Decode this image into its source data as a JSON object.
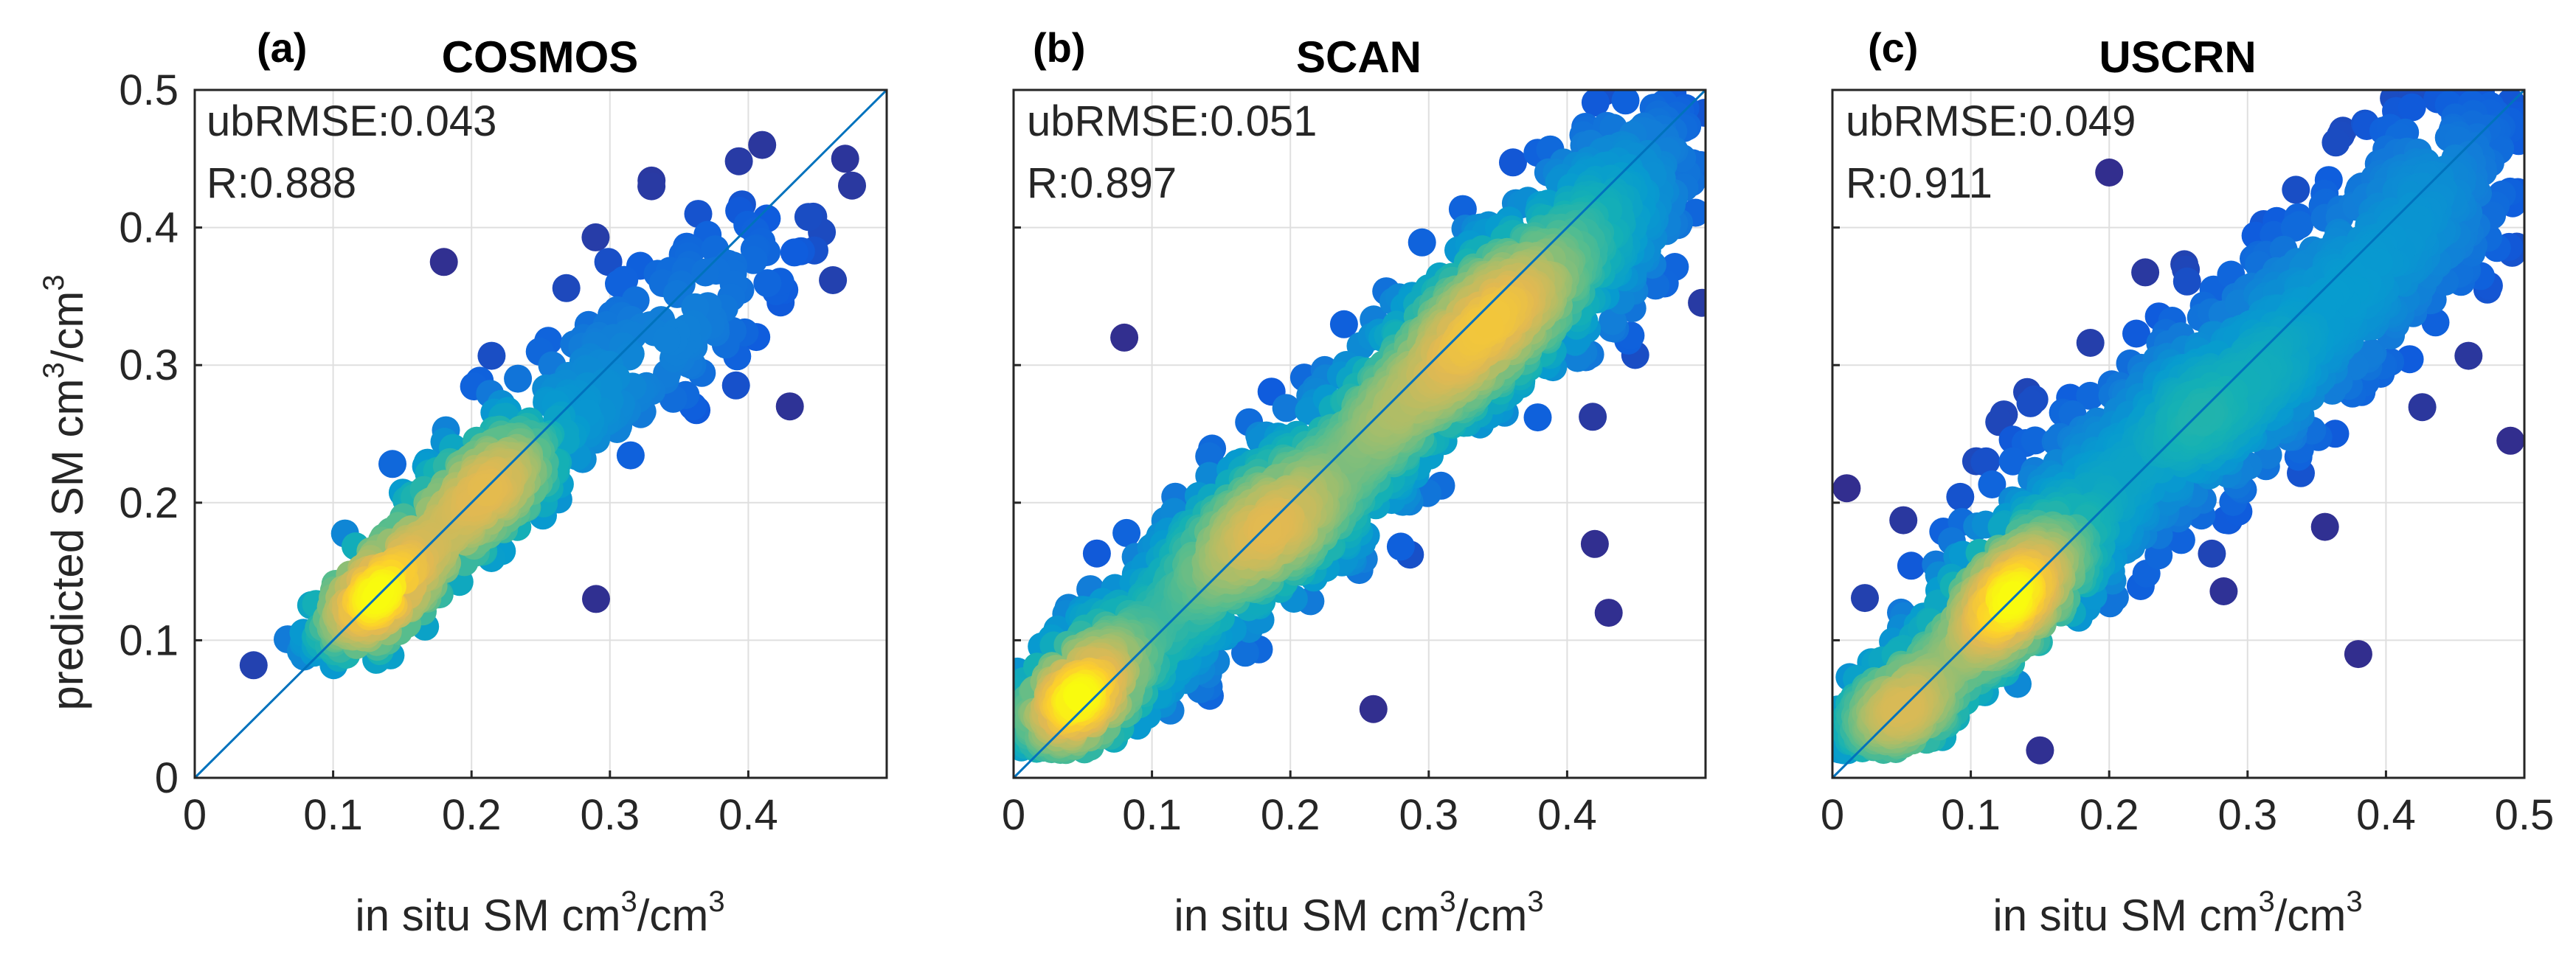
{
  "figure": {
    "ylabel_main": "predicted SM cm",
    "ylabel_sup1": "3",
    "ylabel_mid": "/cm",
    "ylabel_sup2": "3"
  },
  "chart_data": [
    {
      "type": "scatter",
      "panel_letter": "(a)",
      "title": "COSMOS",
      "xlabel_main": "in situ SM cm",
      "xlabel_sup": "3",
      "xlabel_tail": "/cm",
      "xlabel_sup2": "3",
      "xlim": [
        0,
        0.5
      ],
      "ylim": [
        0,
        0.5
      ],
      "xticks": [
        "0",
        "0.1",
        "0.2",
        "0.3",
        "0.4"
      ],
      "yticks": [
        "0",
        "0.1",
        "0.2",
        "0.3",
        "0.4",
        "0.5"
      ],
      "show_yticks": true,
      "stats": [
        "ubRMSE:0.043",
        "R:0.888"
      ],
      "reference_line": "1:1",
      "clusters": [
        {
          "cx": 0.13,
          "cy": 0.13,
          "sx": 0.025,
          "sy": 0.022,
          "rho": 0.7,
          "n": 260
        },
        {
          "cx": 0.21,
          "cy": 0.21,
          "sx": 0.035,
          "sy": 0.03,
          "rho": 0.7,
          "n": 300
        },
        {
          "cx": 0.33,
          "cy": 0.32,
          "sx": 0.07,
          "sy": 0.06,
          "rho": 0.8,
          "n": 180
        }
      ],
      "outliers": [
        [
          0.41,
          0.46
        ],
        [
          0.18,
          0.375
        ],
        [
          0.36,
          0.27
        ],
        [
          0.43,
          0.27
        ],
        [
          0.33,
          0.43
        ],
        [
          0.29,
          0.13
        ],
        [
          0.47,
          0.45
        ]
      ],
      "domain": [
        0.03,
        0.5
      ]
    },
    {
      "type": "scatter",
      "panel_letter": "(b)",
      "title": "SCAN",
      "xlabel_main": "in situ SM cm",
      "xlabel_sup": "3",
      "xlabel_tail": "/cm",
      "xlabel_sup2": "3",
      "xlim": [
        0,
        0.5
      ],
      "ylim": [
        0,
        0.5
      ],
      "xticks": [
        "0",
        "0.1",
        "0.2",
        "0.3",
        "0.4"
      ],
      "yticks": [],
      "show_yticks": false,
      "stats": [
        "ubRMSE:0.051",
        "R:0.897"
      ],
      "reference_line": "1:1",
      "clusters": [
        {
          "cx": 0.04,
          "cy": 0.05,
          "sx": 0.03,
          "sy": 0.035,
          "rho": 0.7,
          "n": 500
        },
        {
          "cx": 0.18,
          "cy": 0.18,
          "sx": 0.06,
          "sy": 0.055,
          "rho": 0.8,
          "n": 800
        },
        {
          "cx": 0.33,
          "cy": 0.32,
          "sx": 0.05,
          "sy": 0.05,
          "rho": 0.75,
          "n": 700
        },
        {
          "cx": 0.43,
          "cy": 0.41,
          "sx": 0.04,
          "sy": 0.05,
          "rho": 0.5,
          "n": 250
        }
      ],
      "outliers": [
        [
          0.43,
          0.12
        ],
        [
          0.47,
          0.49
        ],
        [
          0.44,
          0.46
        ],
        [
          0.08,
          0.32
        ],
        [
          0.26,
          0.05
        ],
        [
          0.42,
          0.17
        ]
      ],
      "domain": [
        0.0,
        0.5
      ]
    },
    {
      "type": "scatter",
      "panel_letter": "(c)",
      "title": "USCRN",
      "xlabel_main": "in situ SM cm",
      "xlabel_sup": "3",
      "xlabel_tail": "/cm",
      "xlabel_sup2": "3",
      "xlim": [
        0,
        0.5
      ],
      "ylim": [
        0,
        0.5
      ],
      "xticks": [
        "0",
        "0.1",
        "0.2",
        "0.3",
        "0.4",
        "0.5"
      ],
      "yticks": [],
      "show_yticks": false,
      "stats": [
        "ubRMSE:0.049",
        "R:0.911"
      ],
      "reference_line": "1:1",
      "clusters": [
        {
          "cx": 0.04,
          "cy": 0.04,
          "sx": 0.03,
          "sy": 0.03,
          "rho": 0.7,
          "n": 500
        },
        {
          "cx": 0.13,
          "cy": 0.13,
          "sx": 0.03,
          "sy": 0.03,
          "rho": 0.7,
          "n": 500
        },
        {
          "cx": 0.27,
          "cy": 0.27,
          "sx": 0.09,
          "sy": 0.08,
          "rho": 0.85,
          "n": 900
        },
        {
          "cx": 0.43,
          "cy": 0.42,
          "sx": 0.04,
          "sy": 0.05,
          "rho": 0.5,
          "n": 200
        }
      ],
      "outliers": [
        [
          0.49,
          0.245
        ],
        [
          0.38,
          0.09
        ],
        [
          0.15,
          0.02
        ],
        [
          0.2,
          0.44
        ],
        [
          0.48,
          0.47
        ],
        [
          0.45,
          0.48
        ]
      ],
      "domain": [
        0.0,
        0.5
      ]
    }
  ]
}
